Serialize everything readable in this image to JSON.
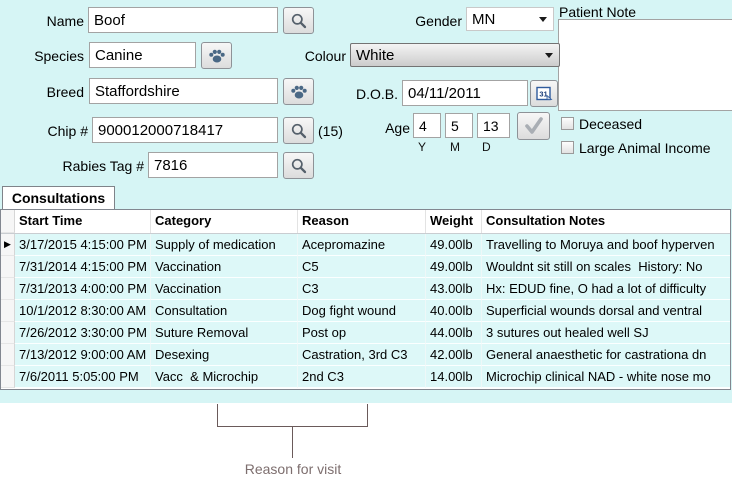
{
  "colors": {
    "panel_bg": "#d6f5f5",
    "row_bg": "#ddf8f8",
    "paw_icon": "#4a6885",
    "annotation": "#7d6e6e"
  },
  "form": {
    "name": {
      "label": "Name",
      "value": "Boof"
    },
    "species": {
      "label": "Species",
      "value": "Canine"
    },
    "breed": {
      "label": "Breed",
      "value": "Staffordshire"
    },
    "chip": {
      "label": "Chip #",
      "value": "900012000718417",
      "suffix": "(15)"
    },
    "rabies": {
      "label": "Rabies Tag #",
      "value": "7816"
    },
    "gender": {
      "label": "Gender",
      "value": "MN"
    },
    "colour": {
      "label": "Colour",
      "value": "White"
    },
    "dob": {
      "label": "D.O.B.",
      "value": "04/11/2011"
    },
    "patient_note": {
      "label": "Patient Note",
      "value": ""
    },
    "age": {
      "label": "Age",
      "years": "4",
      "months": "5",
      "days": "13",
      "units": {
        "y": "Y",
        "m": "M",
        "d": "D"
      }
    },
    "deceased": {
      "label": "Deceased",
      "checked": false
    },
    "large_animal": {
      "label": "Large Animal Income",
      "checked": false
    }
  },
  "tab": {
    "label": "Consultations"
  },
  "table": {
    "columns": [
      "Start Time",
      "Category",
      "Reason",
      "Weight",
      "Consultation Notes"
    ],
    "rows": [
      [
        "3/17/2015 4:15:00 PM",
        "Supply of medication",
        "Acepromazine",
        "49.00lb",
        "Travelling to Moruya and boof hyperven"
      ],
      [
        "7/31/2014 4:15:00 PM",
        "Vaccination",
        "C5",
        "49.00lb",
        "Wouldnt sit still on scales  History: No"
      ],
      [
        "7/31/2013 4:00:00 PM",
        "Vaccination",
        "C3",
        "43.00lb",
        "Hx: EDUD fine, O had a lot of difficulty"
      ],
      [
        "10/1/2012 8:30:00 AM",
        "Consultation",
        "Dog fight wound",
        "40.00lb",
        "Superficial wounds dorsal and ventral"
      ],
      [
        "7/26/2012 3:30:00 PM",
        "Suture Removal",
        "Post op",
        "44.00lb",
        "3 sutures out healed well SJ"
      ],
      [
        "7/13/2012 9:00:00 AM",
        "Desexing",
        "Castration, 3rd C3",
        "42.00lb",
        "General anaesthetic for castrationa dn"
      ],
      [
        "7/6/2011 5:05:00 PM",
        "Vacc  & Microchip",
        "2nd C3",
        "14.00lb",
        "Microchip clinical NAD - white nose mo"
      ]
    ]
  },
  "annotation": {
    "label": "Reason for visit"
  }
}
